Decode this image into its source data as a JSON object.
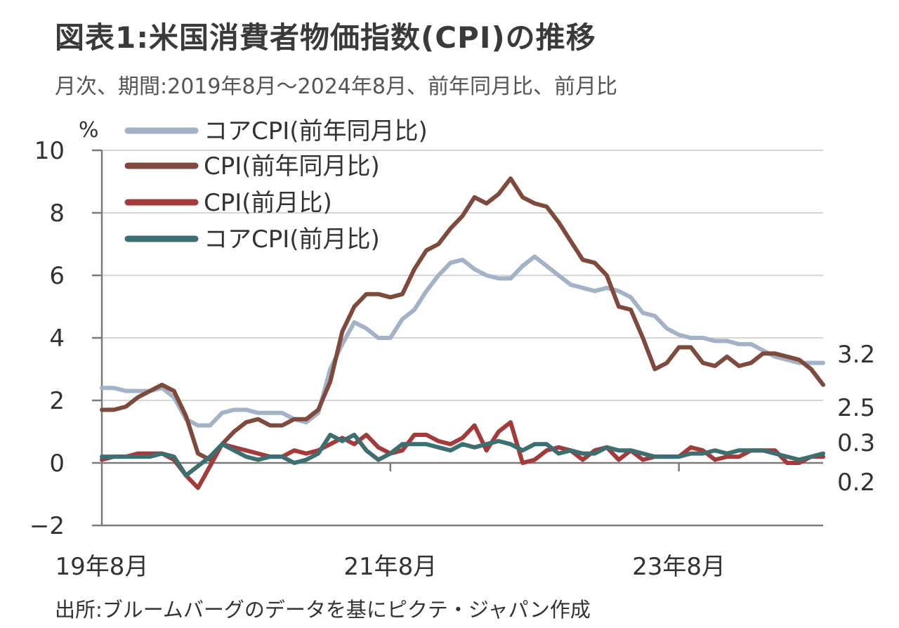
{
  "header": {
    "title": "図表1:米国消費者物価指数(CPI)の推移",
    "subtitle": "月次、期間:2019年8月～2024年8月、前年同月比、前月比"
  },
  "footer": {
    "source": "出所:ブルームバーグのデータを基にピクテ・ジャパン作成"
  },
  "chart_data": {
    "type": "line",
    "ylabel": "%",
    "ylim": [
      -2,
      10
    ],
    "yticks": [
      10,
      8,
      6,
      4,
      2,
      0,
      -2
    ],
    "ytick_labels": [
      "10",
      "8",
      "6",
      "4",
      "2",
      "0",
      "−2"
    ],
    "xlabels": [
      {
        "label": "19年8月",
        "index": 0
      },
      {
        "label": "21年8月",
        "index": 24
      },
      {
        "label": "23年8月",
        "index": 48
      }
    ],
    "grid": true,
    "legend_position": "top-left",
    "start": "2019-08",
    "end": "2024-08",
    "end_labels": [
      "3.2",
      "2.5",
      "0.3",
      "0.2"
    ],
    "series": [
      {
        "name": "コアCPI(前年同月比)",
        "color": "#a3b2c6",
        "values": [
          2.4,
          2.4,
          2.3,
          2.3,
          2.3,
          2.4,
          2.1,
          1.4,
          1.2,
          1.2,
          1.6,
          1.7,
          1.7,
          1.6,
          1.6,
          1.6,
          1.4,
          1.3,
          1.6,
          3.0,
          3.8,
          4.5,
          4.3,
          4.0,
          4.0,
          4.6,
          4.9,
          5.5,
          6.0,
          6.4,
          6.5,
          6.2,
          6.0,
          5.9,
          5.9,
          6.3,
          6.6,
          6.3,
          6.0,
          5.7,
          5.6,
          5.5,
          5.6,
          5.5,
          5.3,
          4.8,
          4.7,
          4.3,
          4.1,
          4.0,
          4.0,
          3.9,
          3.9,
          3.8,
          3.8,
          3.6,
          3.4,
          3.3,
          3.2,
          3.2,
          3.2
        ]
      },
      {
        "name": "CPI(前年同月比)",
        "color": "#7e4a3c",
        "values": [
          1.7,
          1.7,
          1.8,
          2.1,
          2.3,
          2.5,
          2.3,
          1.5,
          0.3,
          0.1,
          0.6,
          1.0,
          1.3,
          1.4,
          1.2,
          1.2,
          1.4,
          1.4,
          1.7,
          2.6,
          4.2,
          5.0,
          5.4,
          5.4,
          5.3,
          5.4,
          6.2,
          6.8,
          7.0,
          7.5,
          7.9,
          8.5,
          8.3,
          8.6,
          9.1,
          8.5,
          8.3,
          8.2,
          7.7,
          7.1,
          6.5,
          6.4,
          6.0,
          5.0,
          4.9,
          4.0,
          3.0,
          3.2,
          3.7,
          3.7,
          3.2,
          3.1,
          3.4,
          3.1,
          3.2,
          3.5,
          3.5,
          3.4,
          3.3,
          3.0,
          2.5
        ]
      },
      {
        "name": "CPI(前月比)",
        "color": "#a33b3b",
        "values": [
          0.1,
          0.2,
          0.2,
          0.3,
          0.3,
          0.3,
          0.1,
          -0.4,
          -0.8,
          -0.1,
          0.6,
          0.5,
          0.4,
          0.3,
          0.2,
          0.2,
          0.4,
          0.3,
          0.4,
          0.6,
          0.8,
          0.6,
          0.9,
          0.5,
          0.3,
          0.4,
          0.9,
          0.9,
          0.7,
          0.6,
          0.8,
          1.2,
          0.4,
          1.0,
          1.3,
          0.0,
          0.1,
          0.4,
          0.5,
          0.4,
          0.1,
          0.4,
          0.5,
          0.1,
          0.4,
          0.1,
          0.2,
          0.2,
          0.2,
          0.5,
          0.4,
          0.1,
          0.2,
          0.2,
          0.4,
          0.4,
          0.4,
          0.0,
          0.0,
          0.2,
          0.2
        ]
      },
      {
        "name": "コアCPI(前月比)",
        "color": "#3d6e70",
        "values": [
          0.2,
          0.2,
          0.2,
          0.2,
          0.2,
          0.3,
          0.2,
          -0.4,
          -0.1,
          0.2,
          0.6,
          0.4,
          0.2,
          0.1,
          0.2,
          0.2,
          0.0,
          0.1,
          0.3,
          0.9,
          0.7,
          0.9,
          0.4,
          0.1,
          0.3,
          0.6,
          0.6,
          0.6,
          0.5,
          0.4,
          0.6,
          0.5,
          0.6,
          0.7,
          0.6,
          0.4,
          0.6,
          0.6,
          0.3,
          0.4,
          0.3,
          0.3,
          0.5,
          0.4,
          0.4,
          0.3,
          0.2,
          0.2,
          0.2,
          0.3,
          0.3,
          0.4,
          0.3,
          0.4,
          0.4,
          0.4,
          0.3,
          0.2,
          0.1,
          0.2,
          0.3
        ]
      }
    ]
  }
}
